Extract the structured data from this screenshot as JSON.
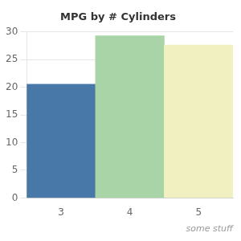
{
  "chart_data": {
    "type": "bar",
    "title": "MPG by # Cylinders",
    "xlabel": "some stuff",
    "categories": [
      3,
      4,
      5
    ],
    "values": [
      20.55,
      29.29,
      27.61
    ],
    "colors": [
      "#4878a8",
      "#a8d4a8",
      "#f0f0c0"
    ],
    "ylim": [
      0,
      30
    ],
    "yticks": [
      0,
      5,
      10,
      15,
      20,
      25,
      30
    ],
    "grid": true
  }
}
